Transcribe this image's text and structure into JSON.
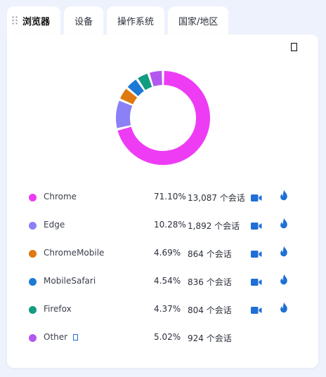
{
  "tabs": [
    {
      "label": "浏览器",
      "active": true
    },
    {
      "label": "设备",
      "active": false
    },
    {
      "label": "操作系统",
      "active": false
    },
    {
      "label": "国家/地区",
      "active": false
    }
  ],
  "icons": {
    "drag": "drag-handle-icon",
    "export": "export-icon",
    "video": "video-camera-icon",
    "flame": "flame-icon",
    "info": "info-icon"
  },
  "colors": {
    "chrome": "#ee3cf5",
    "edge": "#8b80f5",
    "chromemobile": "#de7a10",
    "mobilesafari": "#1c7ad4",
    "firefox": "#129c82",
    "other": "#b358ee",
    "icon_blue": "#1f6fd6"
  },
  "legend": [
    {
      "name": "Chrome",
      "percent": "71.10%",
      "value": 71.1,
      "sessions": "13,087 个会话",
      "color": "#ee3cf5",
      "actions": true,
      "info": false
    },
    {
      "name": "Edge",
      "percent": "10.28%",
      "value": 10.28,
      "sessions": "1,892 个会话",
      "color": "#8b80f5",
      "actions": true,
      "info": false
    },
    {
      "name": "ChromeMobile",
      "percent": "4.69%",
      "value": 4.69,
      "sessions": "864 个会话",
      "color": "#de7a10",
      "actions": true,
      "info": false
    },
    {
      "name": "MobileSafari",
      "percent": "4.54%",
      "value": 4.54,
      "sessions": "836 个会话",
      "color": "#1c7ad4",
      "actions": true,
      "info": false
    },
    {
      "name": "Firefox",
      "percent": "4.37%",
      "value": 4.37,
      "sessions": "804 个会话",
      "color": "#129c82",
      "actions": true,
      "info": false
    },
    {
      "name": "Other",
      "percent": "5.02%",
      "value": 5.02,
      "sessions": "924 个会话",
      "color": "#b358ee",
      "actions": false,
      "info": true
    }
  ]
}
